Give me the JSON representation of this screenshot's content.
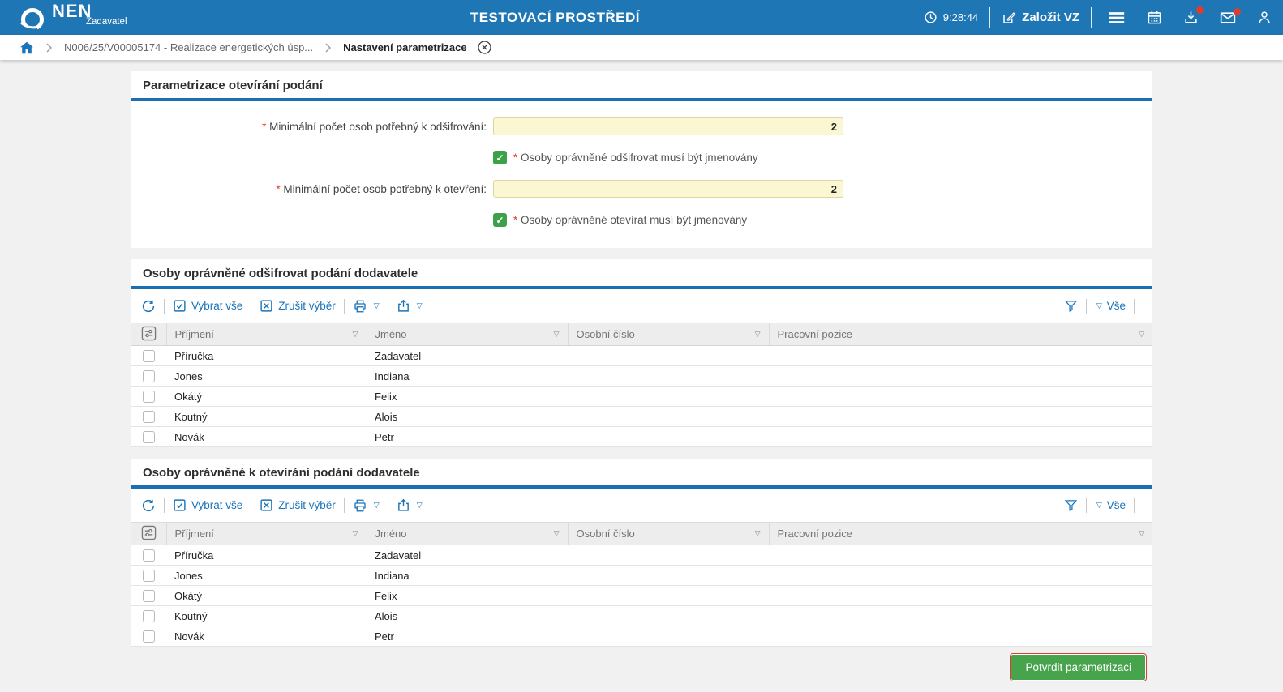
{
  "colors": {
    "header_blue": "#1e76b4",
    "accent_blue": "#1b74b8",
    "input_yellow": "#fbf7d3",
    "checkbox_green": "#3ba249",
    "button_green": "#47a44d",
    "required_red": "#e03b30",
    "badge_red": "#e03b30"
  },
  "header": {
    "logo_text": "NEN",
    "logo_subtitle": "Zadavatel",
    "title": "TESTOVACÍ PROSTŘEDÍ",
    "time": "9:28:44",
    "create_vz_label": "Založit VZ",
    "icons": [
      "clock-icon",
      "edit-icon",
      "hamburger-menu-icon",
      "calendar-icon",
      "download-icon",
      "mail-icon",
      "user-icon"
    ],
    "download_has_badge": true,
    "mail_has_badge": true
  },
  "breadcrumb": {
    "home_icon": "home-icon",
    "item1": "N006/25/V00005174 - Realizace energetických úsp...",
    "item2": "Nastavení parametrizace",
    "close_icon": "close-circle-icon"
  },
  "param_section": {
    "title": "Parametrizace otevírání podání",
    "required_mark": "*",
    "field1_label": "Minimální počet osob potřebný k odšifrování:",
    "field1_value": "2",
    "check1_checked": true,
    "check1_label": "Osoby oprávněné odšifrovat musí být jmenovány",
    "field2_label": "Minimální počet osob potřebný k otevření:",
    "field2_value": "2",
    "check2_checked": true,
    "check2_label": "Osoby oprávněné otevírat musí být jmenovány",
    "checkmark": "✓"
  },
  "toolbar": {
    "refresh_icon": "refresh-icon",
    "select_all": "Vybrat vše",
    "clear_selection": "Zrušit výběr",
    "print_icon": "printer-icon",
    "export_icon": "export-icon",
    "filter_icon": "funnel-icon",
    "filter_all": "Vše",
    "dropdown_arrow": "▽"
  },
  "tables": {
    "decrypt_title": "Osoby oprávněné odšifrovat podání dodavatele",
    "open_title": "Osoby oprávněné k otevírání podání dodavatele",
    "columns": [
      "Příjmení",
      "Jméno",
      "Osobní číslo",
      "Pracovní pozice"
    ],
    "rows": [
      [
        "Příručka",
        "Zadavatel",
        "",
        ""
      ],
      [
        "Jones",
        "Indiana",
        "",
        ""
      ],
      [
        "Okátý",
        "Felix",
        "",
        ""
      ],
      [
        "Koutný",
        "Alois",
        "",
        ""
      ],
      [
        "Novák",
        "Petr",
        "",
        ""
      ]
    ]
  },
  "footer": {
    "confirm_button": "Potvrdit parametrizaci"
  }
}
